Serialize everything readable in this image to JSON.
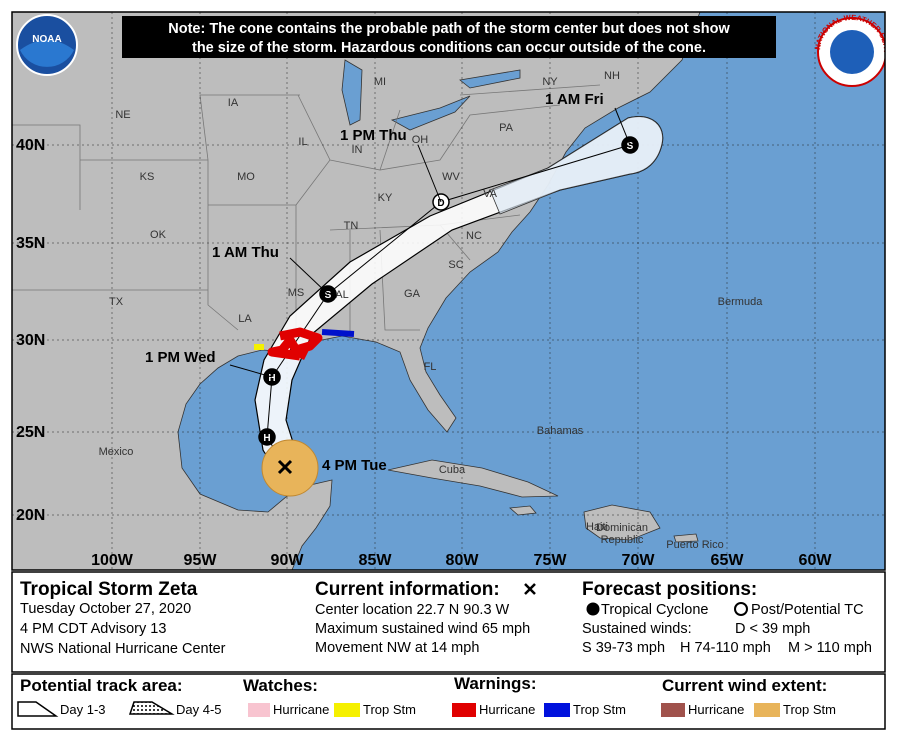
{
  "note": {
    "lines": [
      "Note: The cone contains the probable path of the storm center but does not show",
      "the size of the storm. Hazardous conditions can occur outside of the cone."
    ]
  },
  "logos": {
    "noaa": "NOAA",
    "nws": "NATIONAL WEATHER SERVICE"
  },
  "map": {
    "region_labels": [
      "NE",
      "IA",
      "MI",
      "NY",
      "NH",
      "PA",
      "IL",
      "IN",
      "OH",
      "KS",
      "MO",
      "KY",
      "WV",
      "VA",
      "OK",
      "TN",
      "NC",
      "SC",
      "TX",
      "LA",
      "MS",
      "AL",
      "GA",
      "FL",
      "Bermuda",
      "Mexico",
      "Bahamas",
      "Cuba",
      "Haiti",
      "Dominican",
      "Republic",
      "Puerto Rico"
    ],
    "latitude_labels": [
      "40N",
      "35N",
      "30N",
      "25N",
      "20N"
    ],
    "longitude_labels": [
      "100W",
      "95W",
      "90W",
      "85W",
      "80W",
      "75W",
      "70W",
      "65W",
      "60W"
    ],
    "forecast_points": [
      {
        "time": "4 PM Tue"
      },
      {
        "symbol": "H"
      },
      {
        "time": "1 PM Wed",
        "symbol": "H"
      },
      {
        "time": "1 AM Thu",
        "symbol": "S"
      },
      {
        "time": "1 PM Thu",
        "symbol": "D"
      },
      {
        "time": "1 AM Fri",
        "symbol": "S"
      }
    ]
  },
  "panel": {
    "storm_name": "Tropical Storm Zeta",
    "date": "Tuesday October 27, 2020",
    "advisory": "4 PM CDT Advisory 13",
    "office": "NWS National Hurricane Center",
    "current": {
      "heading": "Current information:",
      "lines": [
        "Center location 22.7 N 90.3 W",
        "Maximum sustained wind 65 mph",
        "Movement NW at 14 mph"
      ]
    },
    "forecast": {
      "heading": "Forecast positions:",
      "tropical": "Tropical Cyclone",
      "post": "Post/Potential TC",
      "winds": "Sustained winds:",
      "d": "D < 39 mph",
      "s": "S 39-73 mph",
      "h": "H 74-110 mph",
      "m": "M > 110 mph"
    }
  },
  "legend": {
    "track": {
      "heading": "Potential track area:",
      "day13": "Day 1-3",
      "day45": "Day 4-5"
    },
    "watches": {
      "heading": "Watches:",
      "hurricane": "Hurricane",
      "trop_stm": "Trop Stm"
    },
    "warnings": {
      "heading": "Warnings:",
      "hurricane": "Hurricane",
      "trop_stm": "Trop Stm"
    },
    "wind": {
      "heading": "Current wind extent:",
      "hurricane": "Hurricane",
      "trop_stm": "Trop Stm"
    }
  }
}
